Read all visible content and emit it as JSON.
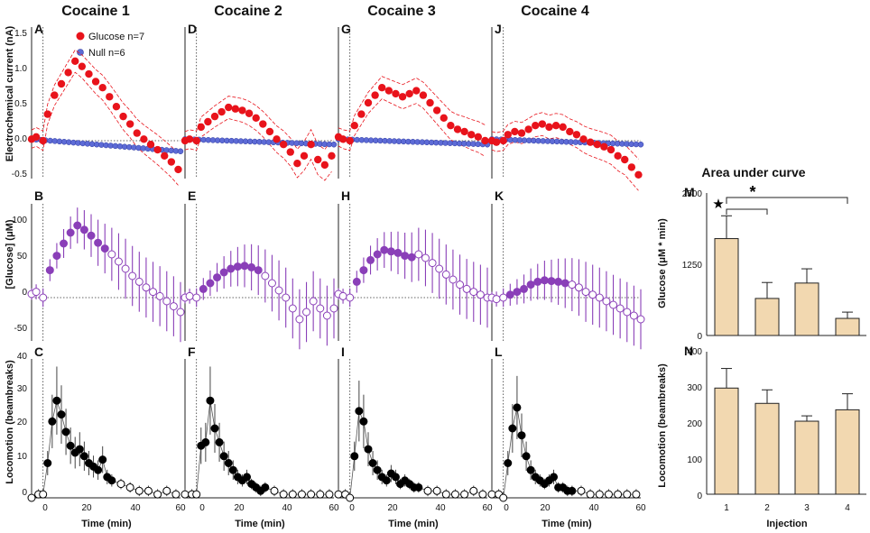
{
  "figure": {
    "column_titles": [
      "Cocaine 1",
      "Cocaine 2",
      "Cocaine 3",
      "Cocaine 4"
    ],
    "auc_title": "Area under curve",
    "time_label": "Time  (min)",
    "time_ticks": [
      "0",
      "20",
      "40",
      "60"
    ],
    "legend": {
      "glucose": "Glucose n=7",
      "null": "Null n=6"
    },
    "rows": [
      {
        "ylabel": "Electrochemical current (nA)",
        "yticks": [
          "-0.5",
          "0.0",
          "0.5",
          "1.0",
          "1.5"
        ],
        "ylim": [
          -0.5,
          1.5
        ]
      },
      {
        "ylabel": "[Glucose]  (μM)",
        "yticks": [
          "-50",
          "0",
          "50",
          "100"
        ],
        "ylim": [
          -60,
          130
        ]
      },
      {
        "ylabel": "Locomotion (beambreaks)",
        "yticks": [
          "0",
          "10",
          "20",
          "30",
          "40"
        ],
        "ylim": [
          0,
          40
        ]
      }
    ],
    "colors": {
      "glucose": "#e8131b",
      "null": "#5d6bd6",
      "purple": "#8a3fb8",
      "open": "#ffffff",
      "bar_fill": "#f2d8b0"
    }
  },
  "chart_data": [
    {
      "panel": "A-J",
      "type": "scatter",
      "title": "Electrochemical current (Glucose vs Null)",
      "series_keys": [
        "Cocaine 1",
        "Cocaine 2",
        "Cocaine 3",
        "Cocaine 4"
      ],
      "x_range": [
        -5,
        60
      ],
      "ylim": [
        -0.5,
        1.5
      ],
      "glucose": [
        {
          "x": [
            -5,
            -3,
            0,
            2,
            5,
            8,
            11,
            14,
            17,
            20,
            23,
            26,
            29,
            32,
            35,
            38,
            41,
            44,
            47,
            50,
            53,
            56,
            59
          ],
          "y": [
            0.02,
            0.05,
            0.0,
            0.35,
            0.6,
            0.75,
            0.9,
            1.05,
            0.98,
            0.88,
            0.78,
            0.7,
            0.58,
            0.45,
            0.32,
            0.22,
            0.1,
            0.02,
            -0.05,
            -0.12,
            -0.2,
            -0.28,
            -0.38
          ]
        },
        {
          "x": [
            -5,
            -3,
            0,
            2,
            5,
            8,
            11,
            14,
            17,
            20,
            23,
            26,
            29,
            32,
            35,
            38,
            41,
            44,
            47,
            50,
            53,
            56,
            59
          ],
          "y": [
            0.0,
            0.02,
            0.0,
            0.18,
            0.25,
            0.32,
            0.38,
            0.44,
            0.42,
            0.4,
            0.36,
            0.3,
            0.22,
            0.12,
            0.02,
            -0.05,
            -0.15,
            -0.3,
            -0.2,
            -0.05,
            -0.25,
            -0.32,
            -0.2
          ]
        },
        {
          "x": [
            -5,
            -3,
            0,
            2,
            5,
            8,
            11,
            14,
            17,
            20,
            23,
            26,
            29,
            32,
            35,
            38,
            41,
            44,
            47,
            50,
            53,
            56,
            59
          ],
          "y": [
            0.05,
            0.02,
            0.0,
            0.2,
            0.35,
            0.5,
            0.6,
            0.7,
            0.66,
            0.62,
            0.58,
            0.62,
            0.66,
            0.6,
            0.5,
            0.4,
            0.3,
            0.2,
            0.15,
            0.12,
            0.08,
            0.05,
            0.0
          ]
        },
        {
          "x": [
            -5,
            -3,
            0,
            2,
            5,
            8,
            11,
            14,
            17,
            20,
            23,
            26,
            29,
            32,
            35,
            38,
            41,
            44,
            47,
            50,
            53,
            56,
            59
          ],
          "y": [
            0.0,
            -0.02,
            0.0,
            0.08,
            0.12,
            0.1,
            0.15,
            0.2,
            0.22,
            0.18,
            0.2,
            0.18,
            0.12,
            0.08,
            0.02,
            -0.02,
            -0.05,
            -0.08,
            -0.12,
            -0.2,
            -0.25,
            -0.35,
            -0.45
          ]
        }
      ],
      "null": [
        {
          "start": 0.02,
          "end": -0.14
        },
        {
          "start": 0.02,
          "end": -0.05
        },
        {
          "start": 0.02,
          "end": -0.05
        },
        {
          "start": 0.02,
          "end": -0.05
        }
      ]
    },
    {
      "panel": "B-K",
      "type": "scatter",
      "title": "[Glucose] (μM)",
      "x_range": [
        -5,
        60
      ],
      "ylim": [
        -60,
        130
      ],
      "series": [
        {
          "x": [
            -5,
            -3,
            0,
            3,
            6,
            9,
            12,
            15,
            18,
            21,
            24,
            27,
            30,
            33,
            36,
            39,
            42,
            45,
            48,
            51,
            54,
            57,
            60
          ],
          "y": [
            5,
            8,
            0,
            38,
            58,
            75,
            90,
            100,
            94,
            86,
            76,
            68,
            60,
            50,
            40,
            30,
            22,
            14,
            8,
            2,
            -5,
            -12,
            -20
          ]
        },
        {
          "x": [
            -5,
            -3,
            0,
            3,
            6,
            9,
            12,
            15,
            18,
            21,
            24,
            27,
            30,
            33,
            36,
            39,
            42,
            45,
            48,
            51,
            54,
            57,
            60
          ],
          "y": [
            0,
            2,
            0,
            12,
            20,
            28,
            35,
            40,
            43,
            44,
            42,
            38,
            30,
            20,
            10,
            0,
            -15,
            -30,
            -20,
            -5,
            -15,
            -25,
            -15
          ]
        },
        {
          "x": [
            -5,
            -3,
            0,
            3,
            6,
            9,
            12,
            15,
            18,
            21,
            24,
            27,
            30,
            33,
            36,
            39,
            42,
            45,
            48,
            51,
            54,
            57,
            60
          ],
          "y": [
            5,
            2,
            0,
            22,
            38,
            52,
            60,
            66,
            64,
            62,
            58,
            56,
            60,
            55,
            48,
            40,
            32,
            25,
            18,
            12,
            8,
            4,
            0
          ]
        },
        {
          "x": [
            -5,
            -3,
            0,
            3,
            6,
            9,
            12,
            15,
            18,
            21,
            24,
            27,
            30,
            33,
            36,
            39,
            42,
            45,
            48,
            51,
            54,
            57,
            60
          ],
          "y": [
            0,
            -2,
            0,
            4,
            8,
            12,
            18,
            22,
            24,
            23,
            22,
            20,
            18,
            14,
            8,
            4,
            0,
            -5,
            -10,
            -15,
            -20,
            -25,
            -30
          ]
        }
      ]
    },
    {
      "panel": "C-L",
      "type": "scatter",
      "title": "Locomotion (beambreaks)",
      "x_range": [
        -5,
        60
      ],
      "ylim": [
        0,
        40
      ],
      "series": [
        {
          "x": [
            -5,
            -2,
            0,
            2,
            4,
            6,
            8,
            10,
            12,
            14,
            16,
            18,
            20,
            22,
            24,
            26,
            28,
            30,
            34,
            38,
            42,
            46,
            50,
            54,
            58
          ],
          "y": [
            0,
            1,
            1,
            10,
            22,
            28,
            24,
            19,
            15,
            13,
            14,
            12,
            10,
            9,
            8,
            11,
            6,
            5,
            4,
            3,
            2,
            2,
            1,
            2,
            1
          ]
        },
        {
          "x": [
            -5,
            -2,
            0,
            2,
            4,
            6,
            8,
            10,
            12,
            14,
            16,
            18,
            20,
            22,
            24,
            26,
            28,
            30,
            34,
            38,
            42,
            46,
            50,
            54,
            58
          ],
          "y": [
            1,
            1,
            1,
            15,
            16,
            28,
            20,
            16,
            12,
            10,
            8,
            6,
            5,
            6,
            4,
            3,
            2,
            3,
            2,
            1,
            1,
            1,
            1,
            1,
            1
          ]
        },
        {
          "x": [
            -5,
            -2,
            0,
            2,
            4,
            6,
            8,
            10,
            12,
            14,
            16,
            18,
            20,
            22,
            24,
            26,
            28,
            30,
            34,
            38,
            42,
            46,
            50,
            54,
            58
          ],
          "y": [
            1,
            1,
            0,
            12,
            25,
            22,
            14,
            10,
            8,
            6,
            5,
            7,
            6,
            4,
            5,
            4,
            3,
            3,
            2,
            2,
            1,
            1,
            1,
            2,
            1
          ]
        },
        {
          "x": [
            -5,
            -2,
            0,
            2,
            4,
            6,
            8,
            10,
            12,
            14,
            16,
            18,
            20,
            22,
            24,
            26,
            28,
            30,
            34,
            38,
            42,
            46,
            50,
            54,
            58
          ],
          "y": [
            1,
            1,
            0,
            10,
            20,
            26,
            18,
            12,
            8,
            6,
            5,
            4,
            5,
            6,
            3,
            3,
            2,
            2,
            2,
            1,
            1,
            1,
            1,
            1,
            1
          ]
        }
      ]
    },
    {
      "panel": "M",
      "type": "bar",
      "title": "Area under curve",
      "categories": [
        "1",
        "2",
        "3",
        "4"
      ],
      "values": [
        1700,
        650,
        920,
        300
      ],
      "errors": [
        400,
        280,
        250,
        110
      ],
      "ylabel": "Glucose (μM * min)",
      "yticks": [
        "0",
        "1250",
        "2500"
      ],
      "ylim": [
        0,
        2500
      ],
      "significance": [
        {
          "from": "1",
          "to": "2",
          "mark": "★"
        },
        {
          "from": "1",
          "to": "4",
          "mark": "*"
        }
      ]
    },
    {
      "panel": "N",
      "type": "bar",
      "categories": [
        "1",
        "2",
        "3",
        "4"
      ],
      "values": [
        298,
        255,
        205,
        237
      ],
      "errors": [
        55,
        38,
        15,
        45
      ],
      "ylabel": "Locomotion (beambreaks)",
      "xlabel": "Injection",
      "yticks": [
        "0",
        "100",
        "200",
        "300",
        "400"
      ],
      "ylim": [
        0,
        400
      ]
    }
  ]
}
